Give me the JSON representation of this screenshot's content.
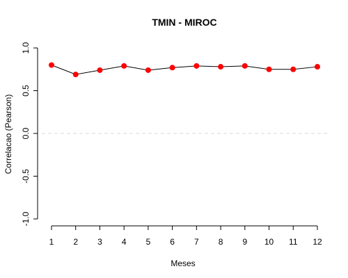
{
  "chart_data": {
    "type": "line",
    "title": "TMIN - MIROC",
    "xlabel": "Meses",
    "ylabel": "Correlacao (Pearson)",
    "x": [
      1,
      2,
      3,
      4,
      5,
      6,
      7,
      8,
      9,
      10,
      11,
      12
    ],
    "x_ticks": [
      "1",
      "2",
      "3",
      "4",
      "5",
      "6",
      "7",
      "8",
      "9",
      "10",
      "11",
      "12"
    ],
    "y_ticks": [
      "-1.0",
      "-0.5",
      "0.0",
      "0.5",
      "1.0"
    ],
    "xlim": [
      1,
      12
    ],
    "ylim": [
      -1,
      1
    ],
    "reference_line": {
      "y": 0,
      "style": "dashed",
      "color": "#d9d9d9"
    },
    "series": [
      {
        "values": [
          0.8,
          0.69,
          0.74,
          0.79,
          0.74,
          0.77,
          0.79,
          0.78,
          0.79,
          0.75,
          0.75,
          0.78
        ],
        "line_color": "#000000",
        "marker_color": "#ff0000"
      }
    ],
    "grid": false,
    "legend": false
  }
}
